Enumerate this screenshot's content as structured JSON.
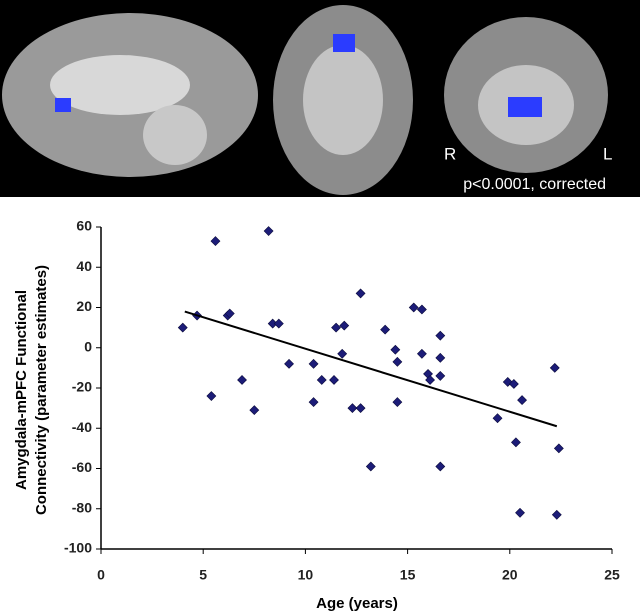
{
  "panel_labels": {
    "left": "R",
    "right": "L",
    "caption": "p<0.0001, corrected"
  },
  "chart_data": {
    "type": "scatter",
    "xlabel": "Age (years)",
    "ylabel": [
      "Amygdala-mPFC Functional",
      "Connectivity (parameter estimates)"
    ],
    "color": "#1c1c78",
    "xlim": [
      0,
      25
    ],
    "xticks": [
      0,
      5,
      10,
      15,
      20,
      25
    ],
    "ylim": [
      -100,
      60
    ],
    "yticks": [
      -100,
      -80,
      -60,
      -40,
      -20,
      0,
      20,
      40,
      60
    ],
    "x": [
      4.0,
      4.7,
      5.4,
      5.6,
      6.2,
      6.3,
      6.9,
      7.5,
      8.2,
      8.4,
      8.7,
      9.2,
      10.4,
      10.4,
      10.8,
      11.4,
      11.5,
      11.8,
      11.9,
      12.3,
      12.7,
      12.7,
      13.2,
      13.9,
      14.4,
      14.5,
      14.5,
      15.3,
      15.7,
      15.7,
      16.0,
      16.1,
      16.6,
      16.6,
      16.6,
      16.6,
      19.4,
      19.9,
      20.2,
      20.3,
      20.5,
      20.6,
      22.2,
      22.3,
      22.4
    ],
    "values": [
      10,
      16,
      -24,
      53,
      16,
      17,
      -16,
      -31,
      58,
      12,
      12,
      -8,
      -8,
      -27,
      -16,
      -16,
      10,
      -3,
      11,
      -30,
      -30,
      27,
      -59,
      9,
      -1,
      -7,
      -27,
      20,
      19,
      -3,
      -13,
      -16,
      -14,
      6,
      -5,
      -59,
      -35,
      -17,
      -18,
      -47,
      -82,
      -26,
      -10,
      -83,
      -50
    ],
    "trend_line": {
      "x": [
        4.1,
        22.3
      ],
      "y": [
        18,
        -39
      ]
    }
  }
}
